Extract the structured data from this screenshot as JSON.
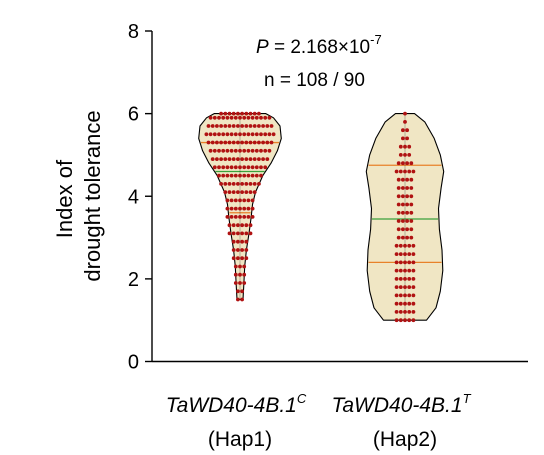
{
  "chart_data": {
    "type": "violin",
    "ylabel_lines": [
      "Index of",
      "drought tolerance"
    ],
    "ylim": [
      0,
      8
    ],
    "yticks": [
      0,
      2,
      4,
      6,
      8
    ],
    "annotation": {
      "p_label": "P",
      "p_text": " = 2.168×10",
      "p_exp": "-7",
      "n_text": "n = 108 / 90"
    },
    "colors": {
      "violin_fill": "#f0e6c4",
      "dot": "#b01212",
      "median": "#3aa03a",
      "quartile": "#e8822a"
    },
    "groups": [
      {
        "name": "TaWD40-4B.1",
        "sup": "C",
        "hap": "(Hap1)",
        "min": 1.5,
        "max": 6.0,
        "q1": 3.6,
        "median": 4.6,
        "q3": 5.3,
        "profile": [
          [
            1.5,
            0.07
          ],
          [
            1.9,
            0.09
          ],
          [
            2.3,
            0.11
          ],
          [
            2.7,
            0.15
          ],
          [
            3.1,
            0.21
          ],
          [
            3.5,
            0.26
          ],
          [
            3.8,
            0.29
          ],
          [
            4.1,
            0.36
          ],
          [
            4.5,
            0.53
          ],
          [
            4.8,
            0.72
          ],
          [
            5.1,
            0.87
          ],
          [
            5.4,
            0.96
          ],
          [
            5.7,
            0.93
          ],
          [
            5.9,
            0.78
          ],
          [
            6.0,
            0.6
          ]
        ],
        "levels": [
          [
            1.5,
            2
          ],
          [
            1.7,
            2
          ],
          [
            1.9,
            3
          ],
          [
            2.1,
            3
          ],
          [
            2.3,
            3
          ],
          [
            2.5,
            4
          ],
          [
            2.7,
            4
          ],
          [
            2.9,
            4
          ],
          [
            3.1,
            6
          ],
          [
            3.3,
            6
          ],
          [
            3.5,
            7
          ],
          [
            3.7,
            7
          ],
          [
            3.9,
            7
          ],
          [
            4.1,
            8
          ],
          [
            4.3,
            10
          ],
          [
            4.5,
            11
          ],
          [
            4.7,
            13
          ],
          [
            4.9,
            14
          ],
          [
            5.1,
            15
          ],
          [
            5.3,
            16
          ],
          [
            5.5,
            17
          ],
          [
            5.7,
            16
          ],
          [
            5.9,
            15
          ],
          [
            6.0,
            10
          ]
        ]
      },
      {
        "name": "TaWD40-4B.1",
        "sup": "T",
        "hap": "(Hap2)",
        "min": 1.0,
        "max": 6.0,
        "q1": 2.4,
        "median": 3.45,
        "q3": 4.75,
        "profile": [
          [
            1.0,
            0.5
          ],
          [
            1.3,
            0.72
          ],
          [
            1.7,
            0.82
          ],
          [
            2.2,
            0.88
          ],
          [
            2.7,
            0.86
          ],
          [
            3.2,
            0.8
          ],
          [
            3.7,
            0.78
          ],
          [
            4.2,
            0.84
          ],
          [
            4.6,
            0.9
          ],
          [
            5.0,
            0.82
          ],
          [
            5.4,
            0.68
          ],
          [
            5.8,
            0.46
          ],
          [
            6.0,
            0.22
          ]
        ],
        "levels": [
          [
            1.0,
            5
          ],
          [
            1.2,
            5
          ],
          [
            1.4,
            5
          ],
          [
            1.6,
            5
          ],
          [
            1.8,
            5
          ],
          [
            2.0,
            5
          ],
          [
            2.2,
            5
          ],
          [
            2.4,
            5
          ],
          [
            2.6,
            5
          ],
          [
            2.8,
            5
          ],
          [
            3.0,
            4
          ],
          [
            3.2,
            4
          ],
          [
            3.4,
            4
          ],
          [
            3.6,
            4
          ],
          [
            3.8,
            4
          ],
          [
            4.0,
            4
          ],
          [
            4.2,
            4
          ],
          [
            4.4,
            4
          ],
          [
            4.6,
            5
          ],
          [
            4.8,
            4
          ],
          [
            5.0,
            3
          ],
          [
            5.2,
            3
          ],
          [
            5.4,
            2
          ],
          [
            5.6,
            2
          ],
          [
            5.8,
            1
          ],
          [
            6.0,
            1
          ]
        ]
      }
    ]
  }
}
